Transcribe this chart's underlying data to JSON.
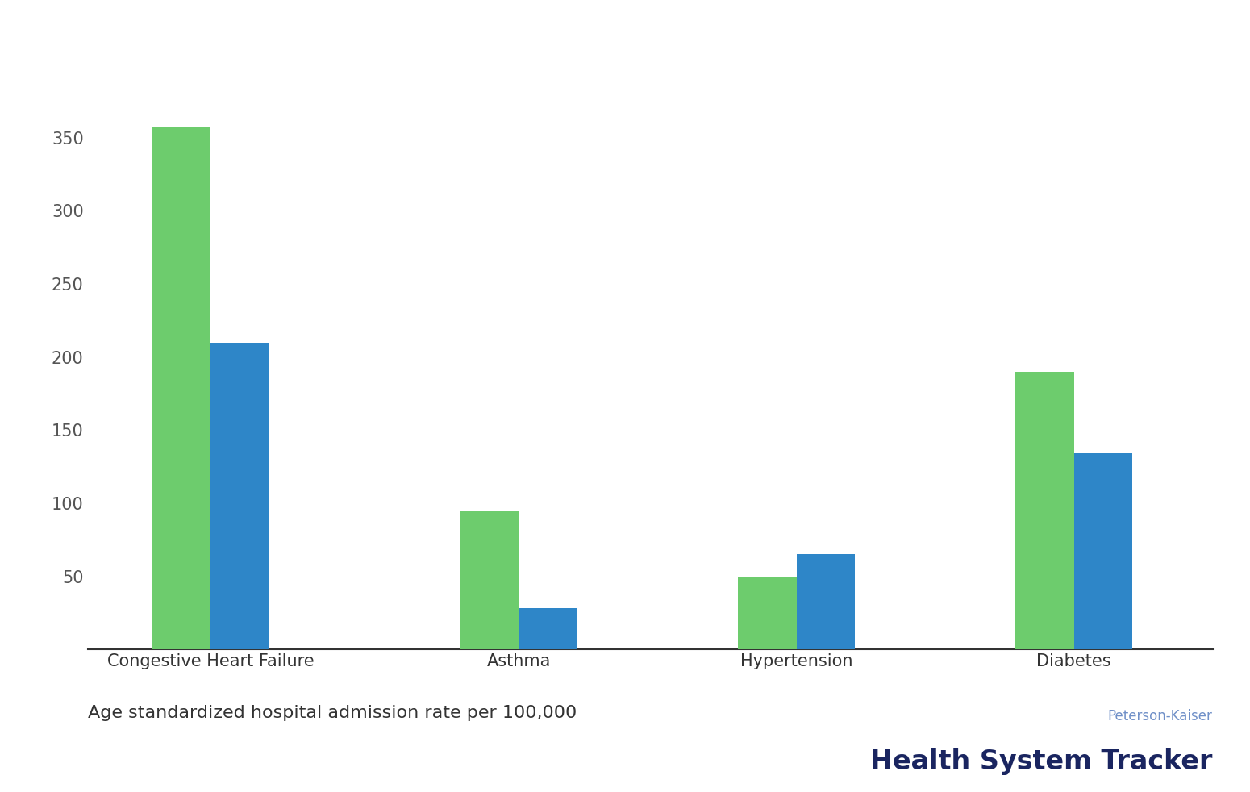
{
  "categories": [
    "Congestive Heart Failure",
    "Asthma",
    "Hypertension",
    "Diabetes"
  ],
  "us_values": [
    357,
    95,
    49,
    190
  ],
  "avg_values": [
    210,
    28,
    65,
    134
  ],
  "us_color": "#6dcc6d",
  "avg_color": "#2e86c8",
  "ylabel_text": "Age standardized hospital admission rate per 100,000",
  "brand_line1": "Peterson-Kaiser",
  "brand_line2": "Health System Tracker",
  "ylim": [
    0,
    390
  ],
  "yticks": [
    50,
    100,
    150,
    200,
    250,
    300,
    350
  ],
  "background_color": "#ffffff",
  "bar_width": 0.38,
  "brand_color1": "#7090c8",
  "brand_color2": "#1a2560"
}
